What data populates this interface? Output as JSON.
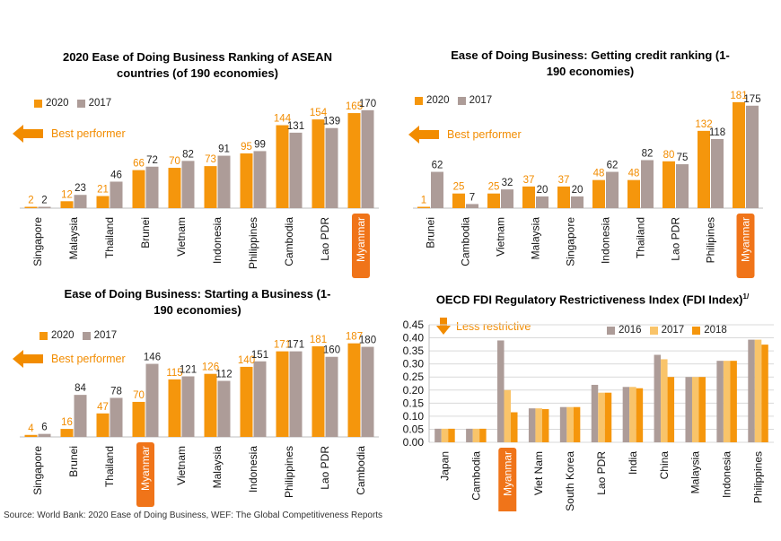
{
  "colors": {
    "c2020": "#f5960c",
    "c2017": "#ad9c98",
    "c2016": "#ad9c98",
    "c2018": "#f5960c",
    "c2017_fdi": "#f9c46a",
    "highlight": "#f07419",
    "label2020": "#f28c00"
  },
  "panels": [
    {
      "id": "p1",
      "title": "2020 Ease of Doing Business Ranking of ASEAN countries (of 190 economies)",
      "legend": [
        "2020",
        "2017"
      ],
      "best_label": "Best performer",
      "chart_data": {
        "type": "bar",
        "categories": [
          "Singapore",
          "Malaysia",
          "Thailand",
          "Brunei",
          "Vietnam",
          "Indonesia",
          "Philippines",
          "Cambodia",
          "Lao PDR",
          "Myanmar"
        ],
        "series": [
          {
            "name": "2020",
            "values": [
              2,
              12,
              21,
              66,
              70,
              73,
              95,
              144,
              154,
              165
            ]
          },
          {
            "name": "2017",
            "values": [
              2,
              23,
              46,
              72,
              82,
              91,
              99,
              131,
              139,
              170
            ]
          }
        ],
        "highlight": "Myanmar",
        "ylim": [
          0,
          190
        ]
      }
    },
    {
      "id": "p2",
      "title": "Ease of Doing Business: Getting credit ranking (1-190 economies)",
      "legend": [
        "2020",
        "2017"
      ],
      "best_label": "Best performer",
      "chart_data": {
        "type": "bar",
        "categories": [
          "Brunei",
          "Cambodia",
          "Vietnam",
          "Malaysia",
          "Singapore",
          "Indonesia",
          "Thailand",
          "Lao PDR",
          "Philipines",
          "Myanmar"
        ],
        "series": [
          {
            "name": "2020",
            "values": [
              1,
              25,
              25,
              37,
              37,
              48,
              48,
              80,
              132,
              181
            ]
          },
          {
            "name": "2017",
            "values": [
              62,
              7,
              32,
              20,
              20,
              62,
              82,
              75,
              118,
              175
            ]
          }
        ],
        "highlight": "Myanmar",
        "ylim": [
          0,
          190
        ]
      }
    },
    {
      "id": "p3",
      "title": "Ease of Doing Business: Starting a Business (1-190 economies)",
      "legend": [
        "2020",
        "2017"
      ],
      "best_label": "Best performer",
      "chart_data": {
        "type": "bar",
        "categories": [
          "Singapore",
          "Brunei",
          "Thailand",
          "Myanmar",
          "Vietnam",
          "Malaysia",
          "Indonesia",
          "Philippines",
          "Lao PDR",
          "Cambodia"
        ],
        "series": [
          {
            "name": "2020",
            "values": [
              4,
              16,
              47,
              70,
              115,
              126,
              140,
              171,
              181,
              187
            ]
          },
          {
            "name": "2017",
            "values": [
              6,
              84,
              78,
              146,
              121,
              112,
              151,
              171,
              160,
              180
            ]
          }
        ],
        "highlight": "Myanmar",
        "ylim": [
          0,
          190
        ]
      }
    },
    {
      "id": "p4",
      "title": "OECD FDI Regulatory Restrictiveness Index (FDI Index)",
      "title_sup": "1/",
      "legend": [
        "2016",
        "2017",
        "2018"
      ],
      "less_label": "Less restrictive",
      "chart_data": {
        "type": "bar",
        "categories": [
          "Japan",
          "Cambodia",
          "Myanmar",
          "Viet Nam",
          "South Korea",
          "Lao PDR",
          "India",
          "China",
          "Malaysia",
          "Indonesia",
          "Philippines"
        ],
        "series": [
          {
            "name": "2016",
            "values": [
              0.052,
              0.052,
              0.39,
              0.13,
              0.135,
              0.22,
              0.212,
              0.335,
              0.25,
              0.312,
              0.393
            ]
          },
          {
            "name": "2017",
            "values": [
              0.052,
              0.052,
              0.2,
              0.13,
              0.135,
              0.19,
              0.212,
              0.318,
              0.25,
              0.312,
              0.393
            ]
          },
          {
            "name": "2018",
            "values": [
              0.052,
              0.052,
              0.115,
              0.127,
              0.135,
              0.19,
              0.207,
              0.25,
              0.25,
              0.312,
              0.374
            ]
          }
        ],
        "highlight": "Myanmar",
        "ylim": [
          0,
          0.45
        ],
        "yticks": [
          "0.00",
          "0.05",
          "0.10",
          "0.15",
          "0.20",
          "0.25",
          "0.30",
          "0.35",
          "0.40",
          "0.45"
        ]
      }
    }
  ],
  "source": "Source: World Bank: 2020 Ease of Doing Business, WEF: The Global Competitiveness Reports"
}
